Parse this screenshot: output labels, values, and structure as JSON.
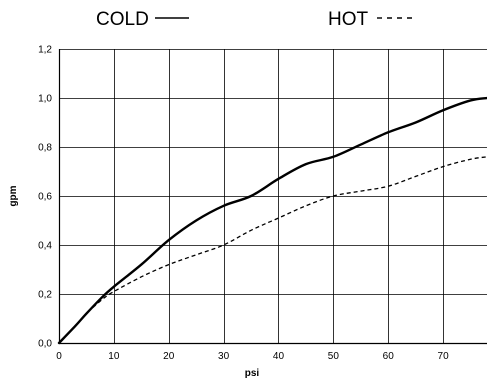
{
  "chart_data": {
    "type": "line",
    "title": "",
    "xlabel": "psi",
    "ylabel": "gpm",
    "xlim": [
      0,
      78
    ],
    "ylim": [
      0,
      1.2
    ],
    "x_ticks": [
      0,
      10,
      20,
      30,
      40,
      50,
      60,
      70
    ],
    "x_tick_labels": [
      "0",
      "10",
      "20",
      "30",
      "40",
      "50",
      "60",
      "70"
    ],
    "y_ticks": [
      0,
      0.2,
      0.4,
      0.6,
      0.8,
      1.0,
      1.2
    ],
    "y_tick_labels": [
      "0,0",
      "0,2",
      "0,4",
      "0,6",
      "0,8",
      "1,0",
      "1,2"
    ],
    "grid": true,
    "legend_position": "top",
    "series": [
      {
        "name": "COLD",
        "style": "solid",
        "color": "#000000",
        "x": [
          0,
          3,
          5,
          8,
          10,
          15,
          20,
          25,
          30,
          35,
          40,
          45,
          50,
          55,
          60,
          65,
          70,
          75,
          78
        ],
        "y": [
          0,
          0.07,
          0.12,
          0.19,
          0.23,
          0.32,
          0.42,
          0.5,
          0.56,
          0.6,
          0.67,
          0.73,
          0.76,
          0.81,
          0.86,
          0.9,
          0.95,
          0.99,
          1.0
        ]
      },
      {
        "name": "HOT",
        "style": "dashed",
        "color": "#000000",
        "x": [
          0,
          3,
          5,
          8,
          10,
          15,
          20,
          25,
          30,
          35,
          40,
          45,
          50,
          55,
          60,
          65,
          70,
          75,
          78
        ],
        "y": [
          0,
          0.07,
          0.12,
          0.18,
          0.21,
          0.27,
          0.32,
          0.36,
          0.4,
          0.46,
          0.51,
          0.56,
          0.6,
          0.62,
          0.64,
          0.68,
          0.72,
          0.75,
          0.76
        ]
      }
    ]
  }
}
